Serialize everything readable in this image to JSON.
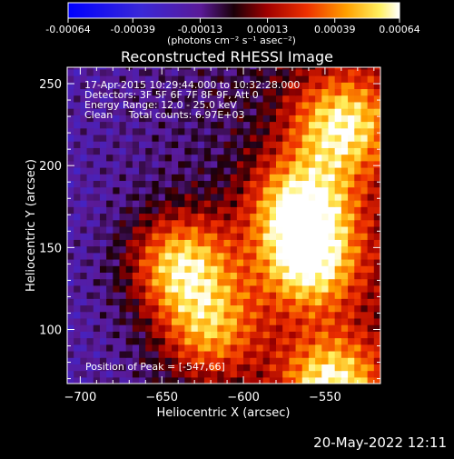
{
  "chart_data": {
    "type": "heatmap",
    "title": "Reconstructed RHESSI Image",
    "xlabel": "Heliocentric X (arcsec)",
    "ylabel": "Heliocentric Y (arcsec)",
    "xlim": [
      -708,
      -516
    ],
    "ylim": [
      67,
      260
    ],
    "xticks": [
      -700,
      -650,
      -600,
      -550
    ],
    "yticks": [
      100,
      150,
      200,
      250
    ],
    "colorbar": {
      "ticks": [
        -0.00064,
        -0.00039,
        -0.00013,
        0.00013,
        0.00039,
        0.00064
      ],
      "tick_labels": [
        "-0.00064",
        "-0.00039",
        "-0.00013",
        "0.00013",
        "0.00039",
        "0.00064"
      ],
      "range": [
        -0.00064,
        0.00064
      ],
      "units": "(photons cm⁻² s⁻¹ asec⁻²)"
    },
    "annotations": [
      "17-Apr-2015 10:29:44.000 to 10:32:28.000",
      "Detectors: 3F 5F 6F 7F 8F 9F, Att 0",
      "Energy Range: 12.0 - 25.0 keV",
      "Clean     Total counts: 6.97E+03"
    ],
    "peak_label": "Position of Peak = [-547,66]",
    "bright_regions": [
      {
        "x": -638,
        "y": 140,
        "value": 0.00064
      },
      {
        "x": -565,
        "y": 175,
        "value": 0.00064
      },
      {
        "x": -560,
        "y": 140,
        "value": 0.0006
      },
      {
        "x": -540,
        "y": 225,
        "value": 0.0006
      },
      {
        "x": -620,
        "y": 100,
        "value": 0.0005
      },
      {
        "x": -547,
        "y": 66,
        "value": 0.00064
      }
    ],
    "grid": false,
    "legend": "colorbar-top"
  },
  "footer": {
    "timestamp": "20-May-2022 12:11"
  }
}
